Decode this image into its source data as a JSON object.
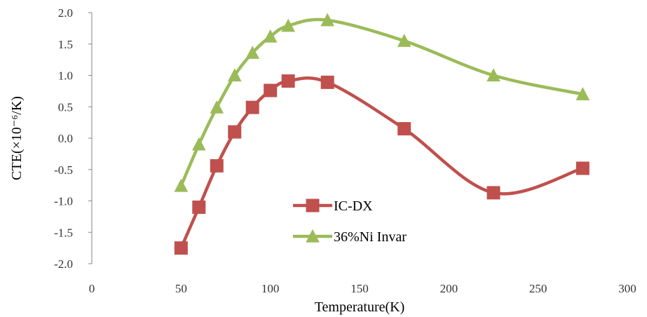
{
  "chart_data": {
    "type": "line",
    "xlabel": "Temperature(K)",
    "ylabel": "CTE(×10⁻⁶/K)",
    "xlim": [
      0,
      300
    ],
    "ylim": [
      -2.0,
      2.0
    ],
    "x_ticks": [
      "0",
      "50",
      "100",
      "150",
      "200",
      "250",
      "300"
    ],
    "y_ticks": [
      "2.0",
      "1.5",
      "1.0",
      "0.5",
      "0.0",
      "-0.5",
      "-1.0",
      "-1.5",
      "-2.0"
    ],
    "grid": false,
    "smooth": true,
    "legend_position": "center",
    "series": [
      {
        "name": "IC-DX",
        "marker": "square",
        "color": "#C0504D",
        "x": [
          50,
          60,
          70,
          80,
          90,
          100,
          110,
          132,
          175,
          225,
          275
        ],
        "y": [
          -1.75,
          -1.1,
          -0.44,
          0.1,
          0.49,
          0.76,
          0.91,
          0.89,
          0.15,
          -0.87,
          -0.48
        ]
      },
      {
        "name": "36%Ni Invar",
        "marker": "triangle",
        "color": "#9BBB59",
        "x": [
          50,
          60,
          70,
          80,
          90,
          100,
          110,
          132,
          175,
          225,
          275
        ],
        "y": [
          -0.76,
          -0.1,
          0.49,
          1.0,
          1.36,
          1.62,
          1.79,
          1.88,
          1.55,
          1.0,
          0.7
        ]
      }
    ]
  }
}
